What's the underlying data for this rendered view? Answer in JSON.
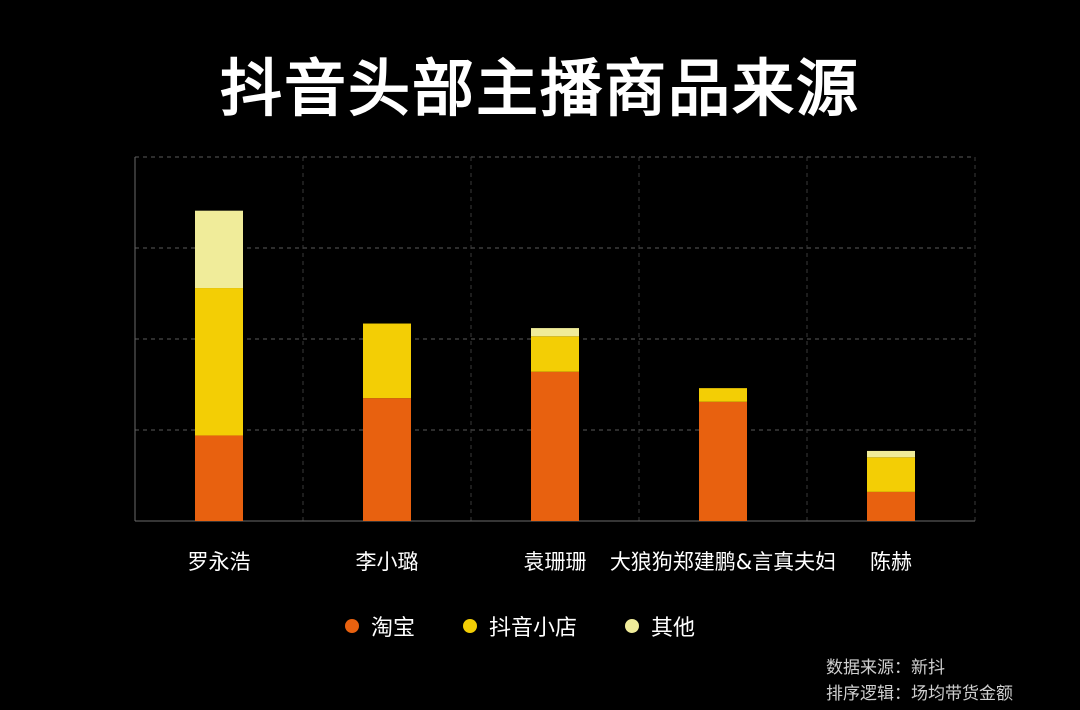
{
  "title": "抖音头部主播商品来源",
  "chart_data": {
    "type": "bar",
    "stacked": true,
    "categories": [
      "罗永浩",
      "李小璐",
      "袁珊珊",
      "大狼狗郑建鹏&言真夫妇",
      "陈赫"
    ],
    "series": [
      {
        "name": "淘宝",
        "color": "#e8610f",
        "values": [
          0.94,
          1.35,
          1.64,
          1.31,
          0.32
        ]
      },
      {
        "name": "抖音小店",
        "color": "#f3ce05",
        "values": [
          1.62,
          0.82,
          0.39,
          0.15,
          0.38
        ]
      },
      {
        "name": "其他",
        "color": "#f0ec9a",
        "values": [
          0.85,
          0.0,
          0.09,
          0.0,
          0.07
        ]
      }
    ],
    "ylim": [
      0,
      4
    ],
    "y_gridlines": [
      1,
      2,
      3,
      4
    ],
    "grid": true,
    "legend_position": "bottom"
  },
  "legend": [
    {
      "label": "淘宝",
      "color": "#e8610f"
    },
    {
      "label": "抖音小店",
      "color": "#f3ce05"
    },
    {
      "label": "其他",
      "color": "#f0ec9a"
    }
  ],
  "footer": {
    "source": "数据来源：新抖",
    "logic": "排序逻辑：场均带货金额"
  }
}
